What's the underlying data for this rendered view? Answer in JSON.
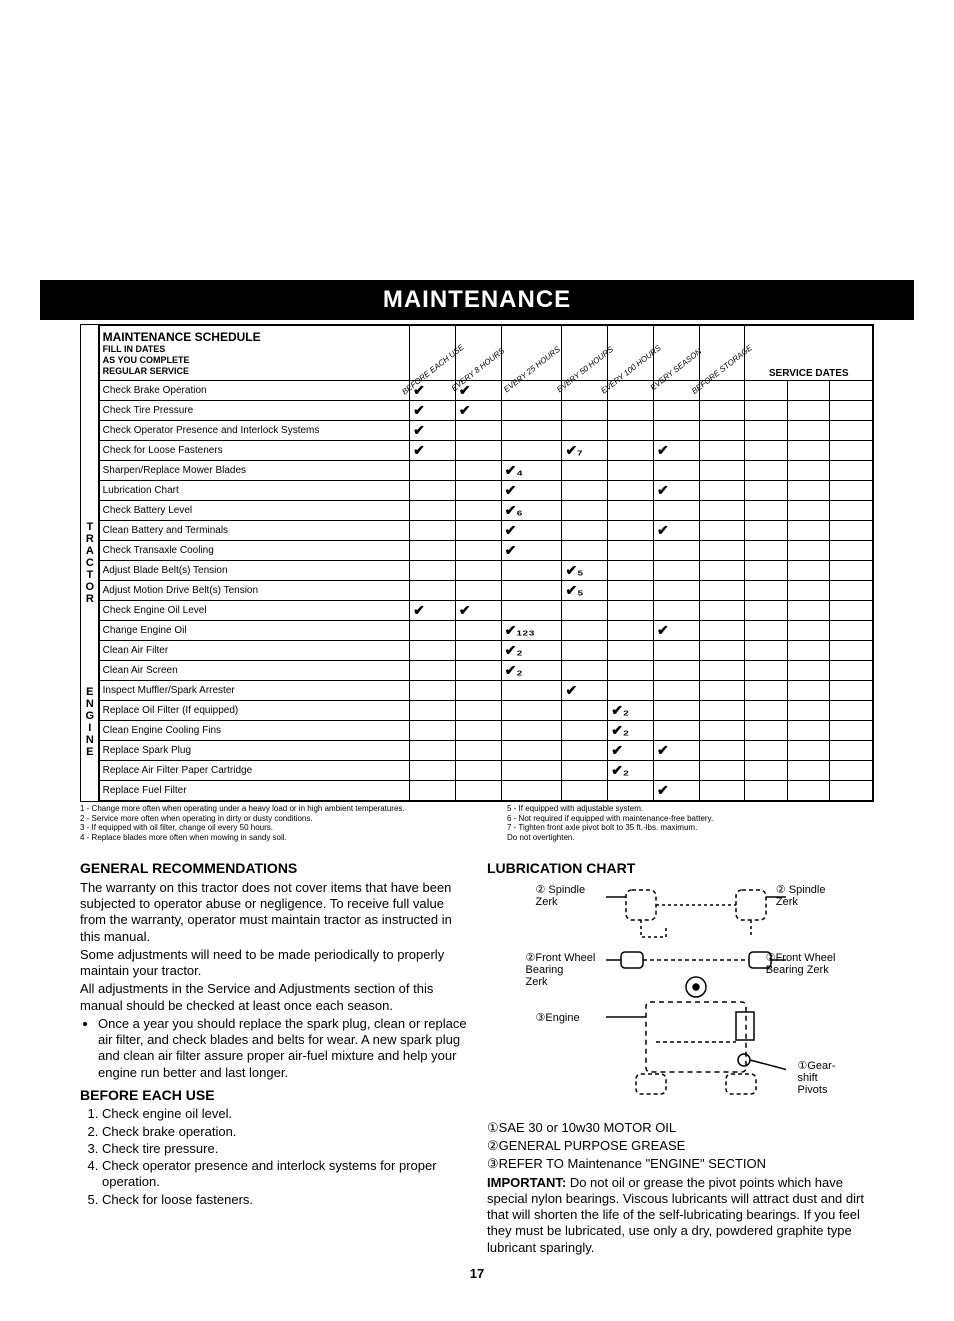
{
  "header": {
    "title": "MAINTENANCE"
  },
  "schedule": {
    "title": "MAINTENANCE SCHEDULE",
    "subtitle": "FILL IN DATES\nAS YOU COMPLETE\nREGULAR SERVICE",
    "service_dates_label": "SERVICE DATES",
    "columns": [
      "BEFORE EACH USE",
      "EVERY 8 HOURS",
      "EVERY 25 HOURS",
      "EVERY 50 HOURS",
      "EVERY 100 HOURS",
      "EVERY SEASON",
      "BEFORE STORAGE"
    ],
    "side_label_top": "TRACTOR",
    "side_label_bottom": "ENGINE",
    "rows_tractor": [
      {
        "desc": "Check Brake Operation",
        "marks": [
          "✔",
          "✔",
          "",
          "",
          "",
          "",
          ""
        ]
      },
      {
        "desc": "Check Tire Pressure",
        "marks": [
          "✔",
          "✔",
          "",
          "",
          "",
          "",
          ""
        ]
      },
      {
        "desc": "Check Operator Presence and Interlock Systems",
        "marks": [
          "✔",
          "",
          "",
          "",
          "",
          "",
          ""
        ]
      },
      {
        "desc": "Check for Loose Fasteners",
        "marks": [
          "✔",
          "",
          "",
          "✔₇",
          "",
          "✔",
          ""
        ]
      },
      {
        "desc": "Sharpen/Replace Mower Blades",
        "marks": [
          "",
          "",
          "✔₄",
          "",
          "",
          "",
          ""
        ]
      },
      {
        "desc": "Lubrication Chart",
        "marks": [
          "",
          "",
          "✔",
          "",
          "",
          "✔",
          ""
        ]
      },
      {
        "desc": "Check Battery Level",
        "marks": [
          "",
          "",
          "✔₆",
          "",
          "",
          "",
          ""
        ]
      },
      {
        "desc": "Clean Battery and Terminals",
        "marks": [
          "",
          "",
          "✔",
          "",
          "",
          "✔",
          ""
        ]
      },
      {
        "desc": "Check Transaxle Cooling",
        "marks": [
          "",
          "",
          "✔",
          "",
          "",
          "",
          ""
        ]
      },
      {
        "desc": "Adjust Blade Belt(s) Tension",
        "marks": [
          "",
          "",
          "",
          "✔₅",
          "",
          "",
          ""
        ]
      },
      {
        "desc": "Adjust Motion Drive Belt(s) Tension",
        "marks": [
          "",
          "",
          "",
          "✔₅",
          "",
          "",
          ""
        ]
      }
    ],
    "rows_engine": [
      {
        "desc": "Check Engine Oil Level",
        "marks": [
          "✔",
          "✔",
          "",
          "",
          "",
          "",
          ""
        ]
      },
      {
        "desc": "Change Engine Oil",
        "marks": [
          "",
          "",
          "✔₁₂₃",
          "",
          "",
          "✔",
          ""
        ]
      },
      {
        "desc": "Clean Air Filter",
        "marks": [
          "",
          "",
          "✔₂",
          "",
          "",
          "",
          ""
        ]
      },
      {
        "desc": "Clean Air Screen",
        "marks": [
          "",
          "",
          "✔₂",
          "",
          "",
          "",
          ""
        ]
      },
      {
        "desc": "Inspect Muffler/Spark Arrester",
        "marks": [
          "",
          "",
          "",
          "✔",
          "",
          "",
          ""
        ]
      },
      {
        "desc": "Replace Oil Filter (If equipped)",
        "marks": [
          "",
          "",
          "",
          "",
          "✔₂",
          "",
          ""
        ]
      },
      {
        "desc": "Clean Engine Cooling Fins",
        "marks": [
          "",
          "",
          "",
          "",
          "✔₂",
          "",
          ""
        ]
      },
      {
        "desc": "Replace Spark Plug",
        "marks": [
          "",
          "",
          "",
          "",
          "✔",
          "✔",
          ""
        ]
      },
      {
        "desc": "Replace Air Filter Paper Cartridge",
        "marks": [
          "",
          "",
          "",
          "",
          "✔₂",
          "",
          ""
        ]
      },
      {
        "desc": "Replace Fuel Filter",
        "marks": [
          "",
          "",
          "",
          "",
          "",
          "✔",
          ""
        ]
      }
    ],
    "footnotes_left": "1 - Change more often when operating under a heavy load or in high ambient temperatures.\n2 - Service more often when operating in dirty or dusty conditions.\n3 - If equipped with oil filter, change oil every 50 hours.\n4 - Replace blades more often when mowing in sandy soil.",
    "footnotes_right": "5 - If equipped with adjustable system.\n6 - Not required if equipped with maintenance-free battery.\n7 - Tighten front axle pivot bolt to 35 ft.-lbs. maximum.\n     Do not overtighten."
  },
  "left_col": {
    "h1": "GENERAL RECOMMENDATIONS",
    "p1": "The warranty on this tractor does not cover items that have been subjected to operator abuse or negligence. To receive full value from the warranty, operator must maintain tractor as instructed in this manual.",
    "p2": "Some adjustments will need to be made periodically to properly maintain your tractor.",
    "p3": "All adjustments in the Service and Adjustments section of this manual should be checked at least once each season.",
    "bullet": "Once a year you should replace the spark plug, clean or replace air filter, and check blades and belts for wear. A new spark plug and clean air filter assure proper air-fuel mixture and help your engine run better and last longer.",
    "h2": "BEFORE EACH USE",
    "items": [
      "Check engine oil level.",
      "Check brake operation.",
      "Check tire pressure.",
      "Check operator presence and interlock systems for proper operation.",
      "Check for loose fasteners."
    ]
  },
  "right_col": {
    "h1": "LUBRICATION CHART",
    "labels": {
      "spindle_l": "② Spindle\nZerk",
      "spindle_r": "② Spindle\nZerk",
      "wheel_l": "②Front Wheel\nBearing\nZerk",
      "wheel_r": "②Front Wheel\nBearing Zerk",
      "engine": "③Engine",
      "gearshift": "①Gear-\nshift\nPivots"
    },
    "notes": [
      "①SAE 30 or 10w30 MOTOR OIL",
      "②GENERAL PURPOSE GREASE",
      "③REFER TO Maintenance \"ENGINE\" SECTION"
    ],
    "important_label": "IMPORTANT:",
    "important": " Do not oil or grease the pivot points which have special nylon bearings. Viscous lubricants will attract dust and dirt that will shorten the life of the self-lubricating bearings. If you feel they must be lubricated, use only a dry, powdered graphite type lubricant sparingly."
  },
  "page_number": "17"
}
